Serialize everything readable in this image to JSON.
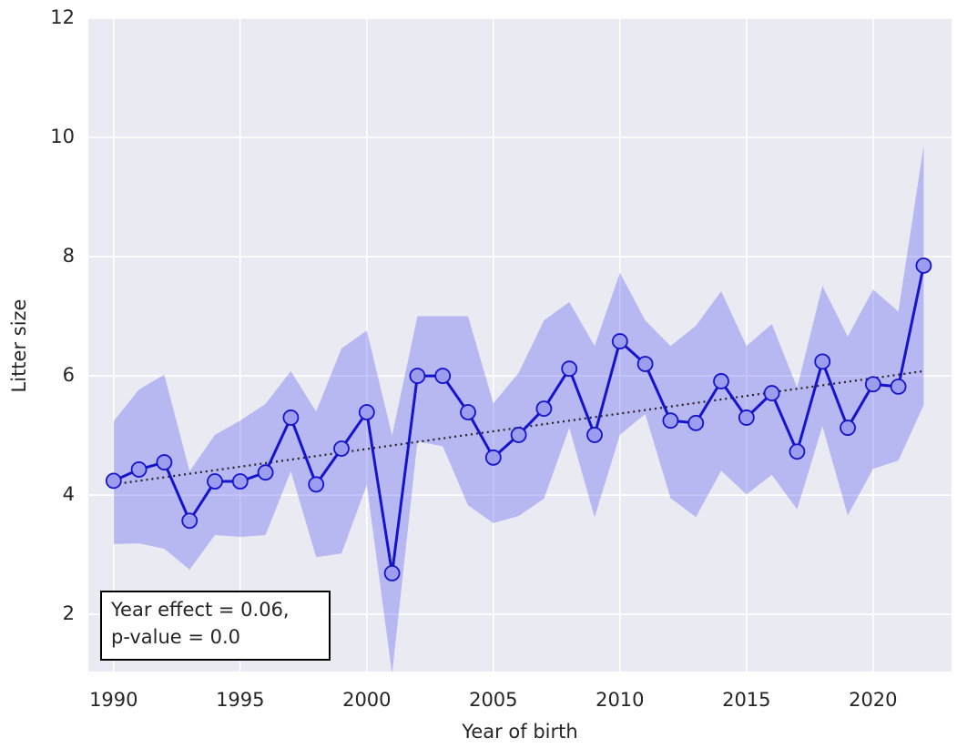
{
  "chart_data": {
    "type": "line",
    "xlabel": "Year of birth",
    "ylabel": "Litter size",
    "x": [
      1990,
      1991,
      1992,
      1993,
      1994,
      1995,
      1996,
      1997,
      1998,
      1999,
      2000,
      2001,
      2002,
      2003,
      2004,
      2005,
      2006,
      2007,
      2008,
      2009,
      2010,
      2011,
      2012,
      2013,
      2014,
      2015,
      2016,
      2017,
      2018,
      2019,
      2020,
      2021,
      2022
    ],
    "series": [
      {
        "color": "#1414cc",
        "band_color": "#5a5af0",
        "marker_color": "#9d9df0",
        "values": [
          4.24,
          4.43,
          4.55,
          3.57,
          4.23,
          4.23,
          4.38,
          5.3,
          4.18,
          4.78,
          5.39,
          2.69,
          6.0,
          6.0,
          5.39,
          4.63,
          5.01,
          5.45,
          6.12,
          5.01,
          6.58,
          6.2,
          5.25,
          5.21,
          5.91,
          5.3,
          5.71,
          4.73,
          6.24,
          5.13,
          5.86,
          5.82,
          7.85
        ],
        "upper": [
          5.24,
          5.77,
          6.02,
          4.4,
          5.01,
          5.25,
          5.53,
          6.08,
          5.4,
          6.46,
          6.76,
          5.0,
          7.0,
          7.0,
          7.0,
          5.54,
          6.05,
          6.93,
          7.24,
          6.5,
          7.73,
          6.93,
          6.5,
          6.84,
          7.42,
          6.5,
          6.87,
          5.8,
          7.51,
          6.66,
          7.45,
          7.08,
          9.86
        ],
        "lower": [
          3.18,
          3.19,
          3.1,
          2.75,
          3.33,
          3.3,
          3.33,
          4.4,
          2.96,
          3.02,
          4.17,
          1.0,
          4.9,
          4.82,
          3.83,
          3.53,
          3.65,
          3.94,
          5.13,
          3.63,
          5.01,
          5.36,
          3.95,
          3.63,
          4.41,
          4.01,
          4.34,
          3.76,
          5.16,
          3.66,
          4.44,
          4.58,
          5.51
        ]
      }
    ],
    "trend": {
      "x": [
        1990,
        2022
      ],
      "values": [
        4.18,
        6.08
      ],
      "color": "#222222"
    },
    "annotation": [
      "Year effect = 0.06,",
      "p-value = 0.0"
    ],
    "xlim": [
      1989,
      2023.1
    ],
    "ylim": [
      1.04,
      12
    ],
    "xticks": [
      1990,
      1995,
      2000,
      2005,
      2010,
      2015,
      2020
    ],
    "yticks": [
      2,
      4,
      6,
      8,
      10,
      12
    ],
    "grid": true
  }
}
